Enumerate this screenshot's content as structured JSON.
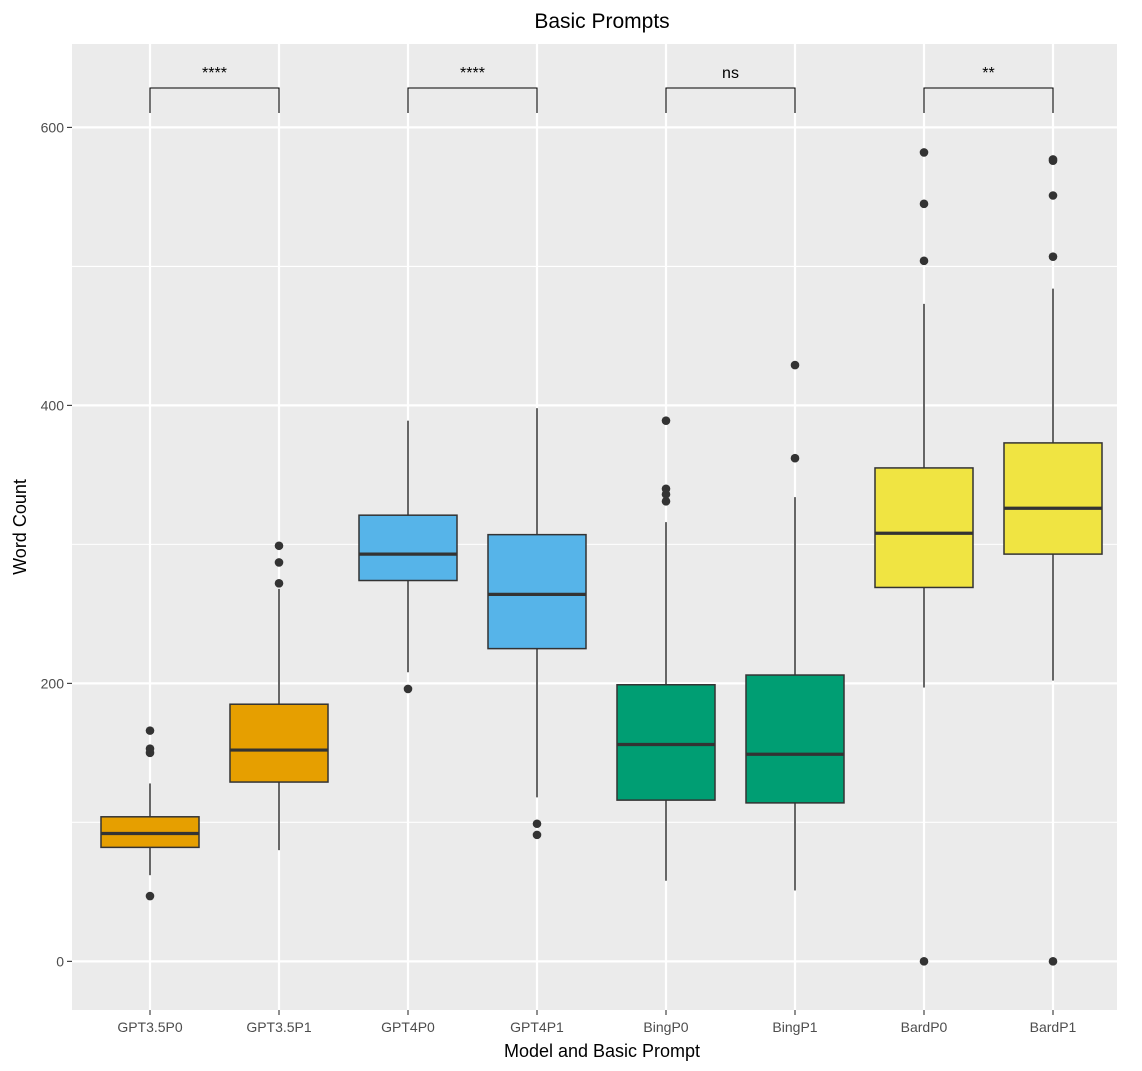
{
  "chart_data": {
    "type": "boxplot",
    "title": "Basic Prompts",
    "xlabel": "Model and Basic Prompt",
    "ylabel": "Word Count",
    "ylim": [
      -35,
      660
    ],
    "yticks": [
      0,
      200,
      400,
      600
    ],
    "ytick_labels": [
      "0",
      "200",
      "400",
      "600"
    ],
    "grid": true,
    "categories": [
      "GPT3.5P0",
      "GPT3.5P1",
      "GPT4P0",
      "GPT4P1",
      "BingP0",
      "BingP1",
      "BardP0",
      "BardP1"
    ],
    "boxes": [
      {
        "label": "GPT3.5P0",
        "color": "#E69F00",
        "q1": 82,
        "median": 92,
        "q3": 104,
        "whisker_low": 62,
        "whisker_high": 128,
        "outliers": [
          47,
          150,
          153,
          166
        ]
      },
      {
        "label": "GPT3.5P1",
        "color": "#E69F00",
        "q1": 129,
        "median": 152,
        "q3": 185,
        "whisker_low": 80,
        "whisker_high": 268,
        "outliers": [
          272,
          287,
          299
        ]
      },
      {
        "label": "GPT4P0",
        "color": "#56B4E9",
        "q1": 274,
        "median": 293,
        "q3": 321,
        "whisker_low": 208,
        "whisker_high": 389,
        "outliers": [
          196
        ]
      },
      {
        "label": "GPT4P1",
        "color": "#56B4E9",
        "q1": 225,
        "median": 264,
        "q3": 307,
        "whisker_low": 118,
        "whisker_high": 398,
        "outliers": [
          91,
          99
        ]
      },
      {
        "label": "BingP0",
        "color": "#009E73",
        "q1": 116,
        "median": 156,
        "q3": 199,
        "whisker_low": 58,
        "whisker_high": 316,
        "outliers": [
          331,
          336,
          340,
          389
        ]
      },
      {
        "label": "BingP1",
        "color": "#009E73",
        "q1": 114,
        "median": 149,
        "q3": 206,
        "whisker_low": 51,
        "whisker_high": 334,
        "outliers": [
          362,
          429
        ]
      },
      {
        "label": "BardP0",
        "color": "#F0E442",
        "q1": 269,
        "median": 308,
        "q3": 355,
        "whisker_low": 197,
        "whisker_high": 473,
        "outliers": [
          0,
          504,
          545,
          582
        ]
      },
      {
        "label": "BardP1",
        "color": "#F0E442",
        "q1": 293,
        "median": 326,
        "q3": 373,
        "whisker_low": 202,
        "whisker_high": 484,
        "outliers": [
          0,
          507,
          551,
          576,
          577
        ]
      }
    ],
    "annotations": [
      {
        "from": "GPT3.5P0",
        "to": "GPT3.5P1",
        "label": "****"
      },
      {
        "from": "GPT4P0",
        "to": "GPT4P1",
        "label": "****"
      },
      {
        "from": "BingP0",
        "to": "BingP1",
        "label": "ns"
      },
      {
        "from": "BardP0",
        "to": "BardP1",
        "label": "**"
      }
    ],
    "style": {
      "panel_background": "#EBEBEB",
      "grid_color": "#FFFFFF",
      "box_outline": "#333333",
      "median_color": "#333333",
      "outlier_color": "#333333"
    }
  }
}
